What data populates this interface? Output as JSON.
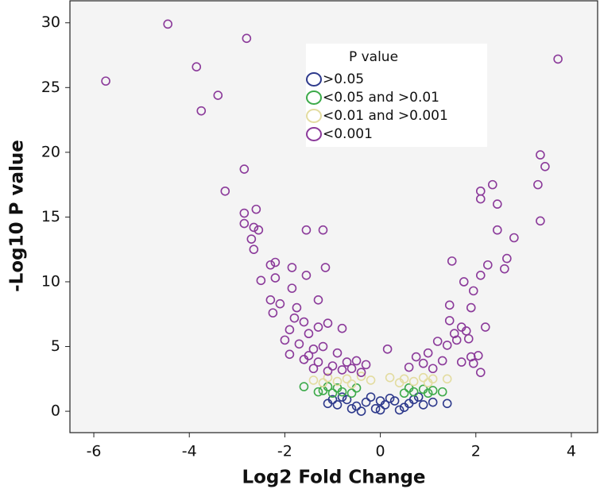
{
  "chart_data": {
    "type": "scatter",
    "x_label": "Log2 Fold Change",
    "y_label": "-Log10 P value",
    "legend_title": "P value",
    "legend_position": "upper center",
    "xlim": [
      -6.5,
      4.55
    ],
    "ylim": [
      -1.65,
      31.7
    ],
    "xticks": [
      -6,
      -4,
      -2,
      0,
      2,
      4
    ],
    "yticks": [
      0,
      5,
      10,
      15,
      20,
      25,
      30
    ],
    "series": [
      {
        "name": ">0.05",
        "color": "#2e3a8c",
        "x": [
          -1.1,
          -0.9,
          -0.7,
          -0.5,
          -0.3,
          -0.1,
          0,
          0.1,
          0.3,
          0.5,
          0.7,
          0.9,
          1.4,
          -0.2,
          0.2,
          -0.6,
          0.4,
          0.6,
          -0.4,
          0.0,
          -0.8,
          0.8,
          1.1,
          -1.0
        ],
        "y": [
          0.6,
          0.5,
          0.9,
          0.4,
          0.7,
          0.2,
          0.1,
          0.5,
          0.8,
          0.3,
          0.9,
          0.5,
          0.6,
          1.1,
          1.0,
          0.2,
          0.1,
          0.6,
          0.0,
          0.8,
          1.1,
          1.1,
          0.7,
          0.9
        ]
      },
      {
        "name": "<0.05 and >0.01",
        "color": "#3daa4a",
        "x": [
          -1.6,
          -1.2,
          -1.0,
          -0.8,
          -0.6,
          -0.9,
          -1.3,
          0.5,
          0.7,
          0.9,
          1.1,
          1.3,
          1.0,
          0.6,
          -0.5,
          -1.1
        ],
        "y": [
          1.9,
          1.6,
          1.4,
          1.5,
          1.4,
          1.8,
          1.5,
          1.4,
          1.5,
          1.7,
          1.6,
          1.5,
          1.4,
          1.8,
          1.8,
          1.9
        ]
      },
      {
        "name": "<0.01 and >0.001",
        "color": "#e3dca0",
        "x": [
          -1.4,
          -1.1,
          -0.9,
          -0.7,
          -0.4,
          -0.2,
          0.2,
          0.5,
          0.7,
          0.9,
          1.1,
          1.4,
          -1.2,
          0.4,
          1.0,
          -0.6
        ],
        "y": [
          2.4,
          2.6,
          2.3,
          2.5,
          2.7,
          2.4,
          2.6,
          2.5,
          2.3,
          2.6,
          2.5,
          2.5,
          2.2,
          2.2,
          2.2,
          2.1
        ]
      },
      {
        "name": "<0.001",
        "color": "#8b3a9a",
        "x": [
          -5.75,
          -4.45,
          -3.85,
          -3.75,
          -3.4,
          -2.8,
          3.72,
          -3.25,
          -2.85,
          -2.85,
          -2.85,
          -2.6,
          -2.65,
          -2.55,
          -2.7,
          -2.65,
          -2.2,
          -2.3,
          -2.5,
          -2.2,
          -1.85,
          -1.55,
          -1.2,
          -1.15,
          -1.55,
          -1.3,
          -2.3,
          -2.1,
          -1.85,
          -1.75,
          -2.25,
          -1.8,
          -1.6,
          -1.9,
          -1.5,
          -1.3,
          -1.1,
          -0.8,
          -1.7,
          -1.4,
          -1.2,
          -0.9,
          -1.6,
          -1.3,
          -1.0,
          -0.7,
          -0.5,
          -1.4,
          -1.1,
          -0.8,
          -0.6,
          -0.4,
          -1.9,
          -2.0,
          -1.5,
          0.15,
          0.75,
          0.9,
          1.0,
          1.1,
          1.3,
          1.2,
          1.4,
          1.55,
          1.7,
          1.8,
          1.6,
          1.45,
          1.85,
          1.9,
          2.05,
          2.2,
          1.95,
          1.45,
          1.5,
          1.75,
          1.95,
          1.9,
          2.1,
          2.25,
          2.1,
          2.1,
          2.35,
          2.45,
          2.45,
          2.6,
          2.65,
          2.8,
          3.3,
          3.35,
          3.45,
          3.35,
          2.1,
          1.7,
          0.6,
          -0.3
        ],
        "y": [
          25.5,
          29.9,
          26.6,
          23.2,
          24.4,
          28.8,
          27.2,
          17.0,
          18.7,
          15.3,
          14.5,
          15.6,
          14.2,
          14.0,
          13.3,
          12.5,
          11.5,
          11.3,
          10.1,
          10.3,
          11.1,
          14.0,
          14.0,
          11.1,
          10.5,
          8.6,
          8.6,
          8.3,
          9.5,
          8.0,
          7.6,
          7.2,
          6.9,
          6.3,
          6.0,
          6.5,
          6.8,
          6.4,
          5.2,
          4.8,
          5.0,
          4.5,
          4.0,
          3.8,
          3.5,
          3.8,
          3.9,
          3.3,
          3.1,
          3.2,
          3.3,
          3.0,
          4.4,
          5.5,
          4.3,
          4.8,
          4.2,
          3.7,
          4.5,
          3.3,
          3.9,
          5.4,
          5.1,
          6.0,
          6.5,
          6.2,
          5.5,
          7.0,
          5.6,
          4.2,
          4.3,
          6.5,
          3.7,
          8.2,
          11.6,
          10.0,
          9.3,
          8.0,
          10.5,
          11.3,
          16.4,
          17.0,
          17.5,
          16.0,
          14.0,
          11.0,
          11.8,
          13.4,
          17.5,
          19.8,
          18.9,
          14.7,
          3.0,
          3.8,
          3.4,
          3.6
        ]
      }
    ]
  }
}
